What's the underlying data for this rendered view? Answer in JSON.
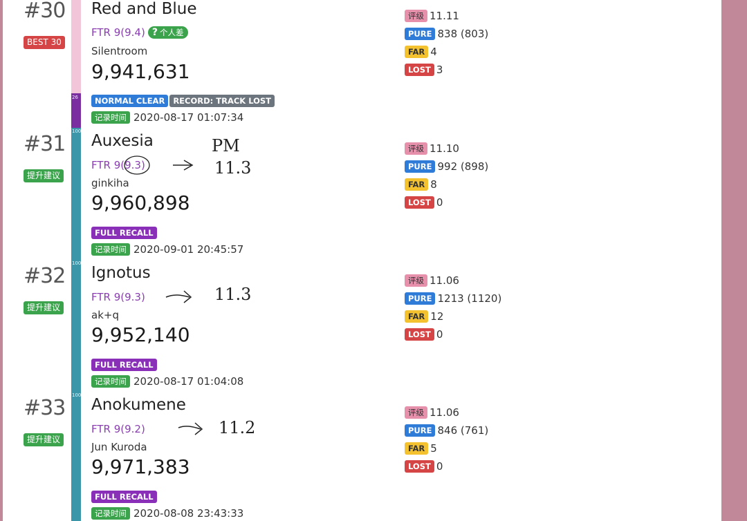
{
  "labels": {
    "record_time": "记录时间",
    "rating": "评级",
    "pure": "PURE",
    "far": "FAR",
    "lost": "LOST"
  },
  "colors": {
    "background_side": "#c08898",
    "best_badge": "#d64545",
    "suggest_badge": "#3aa34b",
    "bar_pink": "#f3c5d8",
    "bar_purple": "#7a2ea0",
    "bar_teal": "#3a96a8",
    "normal_clear": "#2f7cd8",
    "track_lost": "#6c757d",
    "full_recall": "#8a2fb8"
  },
  "records": [
    {
      "rank": "#30",
      "badge": "BEST 30",
      "bar_label": "26",
      "title": "Red and Blue",
      "difficulty": "FTR 9(9.4)",
      "note_pill": {
        "mark": "?",
        "text": "个人差"
      },
      "artist": "Silentroom",
      "score": "9,941,631",
      "tags": [
        "NORMAL CLEAR",
        "RECORD: TRACK LOST"
      ],
      "time": "2020-08-17 01:07:34",
      "rating": "11.11",
      "pure": "838 (803)",
      "far": "4",
      "lost": "3",
      "handwriting": []
    },
    {
      "rank": "#31",
      "badge": "提升建议",
      "bar_label": "100",
      "title": "Auxesia",
      "difficulty": "FTR 9(9.3)",
      "artist": "ginkiha",
      "score": "9,960,898",
      "tags": [
        "FULL RECALL"
      ],
      "time": "2020-09-01 20:45:57",
      "rating": "11.10",
      "pure": "992 (898)",
      "far": "8",
      "lost": "0",
      "handwriting": [
        "PM",
        "11.3"
      ]
    },
    {
      "rank": "#32",
      "badge": "提升建议",
      "bar_label": "100",
      "title": "Ignotus",
      "difficulty": "FTR 9(9.3)",
      "artist": "ak+q",
      "score": "9,952,140",
      "tags": [
        "FULL RECALL"
      ],
      "time": "2020-08-17 01:04:08",
      "rating": "11.06",
      "pure": "1213 (1120)",
      "far": "12",
      "lost": "0",
      "handwriting": [
        "11.3"
      ]
    },
    {
      "rank": "#33",
      "badge": "提升建议",
      "bar_label": "100",
      "title": "Anokumene",
      "difficulty": "FTR 9(9.2)",
      "artist": "Jun Kuroda",
      "score": "9,971,383",
      "tags": [
        "FULL RECALL"
      ],
      "time": "2020-08-08 23:43:33",
      "rating": "11.06",
      "pure": "846 (761)",
      "far": "5",
      "lost": "0",
      "handwriting": [
        "11.2"
      ]
    }
  ]
}
